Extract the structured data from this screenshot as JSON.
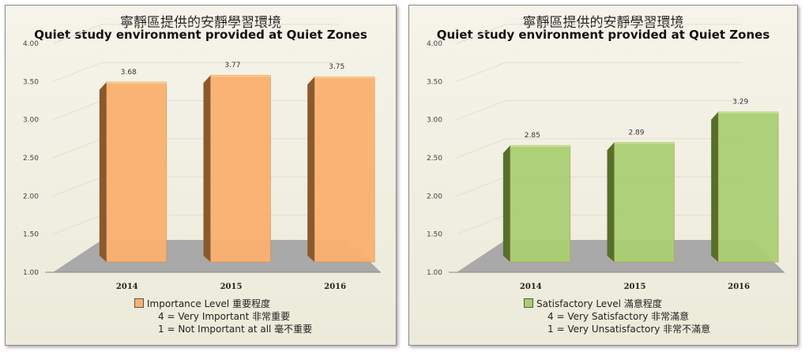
{
  "chart_data": [
    {
      "type": "bar",
      "title": "寧靜區提供的安靜學習環境",
      "subtitle": "Quiet study environment provided at Quiet Zones",
      "categories": [
        "2014",
        "2015",
        "2016"
      ],
      "values": [
        3.68,
        3.77,
        3.75
      ],
      "data_labels": [
        "3.68",
        "3.77",
        "3.75"
      ],
      "ylim": [
        1.0,
        4.0
      ],
      "y_ticks": [
        "1.00",
        "1.50",
        "2.00",
        "2.50",
        "3.00",
        "3.50",
        "4.00"
      ],
      "xlabel": "",
      "ylabel": "",
      "grid": true,
      "colors": {
        "front": "#f9b06f",
        "side": "#8a5a2c",
        "top": "#fcc98f"
      },
      "legend": {
        "position": "bottom",
        "label": "Importance Level 重要程度",
        "notes": [
          "4 = Very Important 非常重要",
          "1 = Not  Important at all 毫不重要"
        ]
      }
    },
    {
      "type": "bar",
      "title": "寧靜區提供的安靜學習環境",
      "subtitle": "Quiet study environment provided at Quiet Zones",
      "categories": [
        "2014",
        "2015",
        "2016"
      ],
      "values": [
        2.85,
        2.89,
        3.29
      ],
      "data_labels": [
        "2.85",
        "2.89",
        "3.29"
      ],
      "ylim": [
        1.0,
        4.0
      ],
      "y_ticks": [
        "1.00",
        "1.50",
        "2.00",
        "2.50",
        "3.00",
        "3.50",
        "4.00"
      ],
      "xlabel": "",
      "ylabel": "",
      "grid": true,
      "colors": {
        "front": "#a9cf72",
        "side": "#56702c",
        "top": "#c6e294"
      },
      "legend": {
        "position": "bottom",
        "label": "Satisfactory Level 滿意程度",
        "notes": [
          "4 = Very Satisfactory 非常滿意",
          "1 = Very Unsatisfactory 非常不滿意"
        ]
      }
    }
  ]
}
